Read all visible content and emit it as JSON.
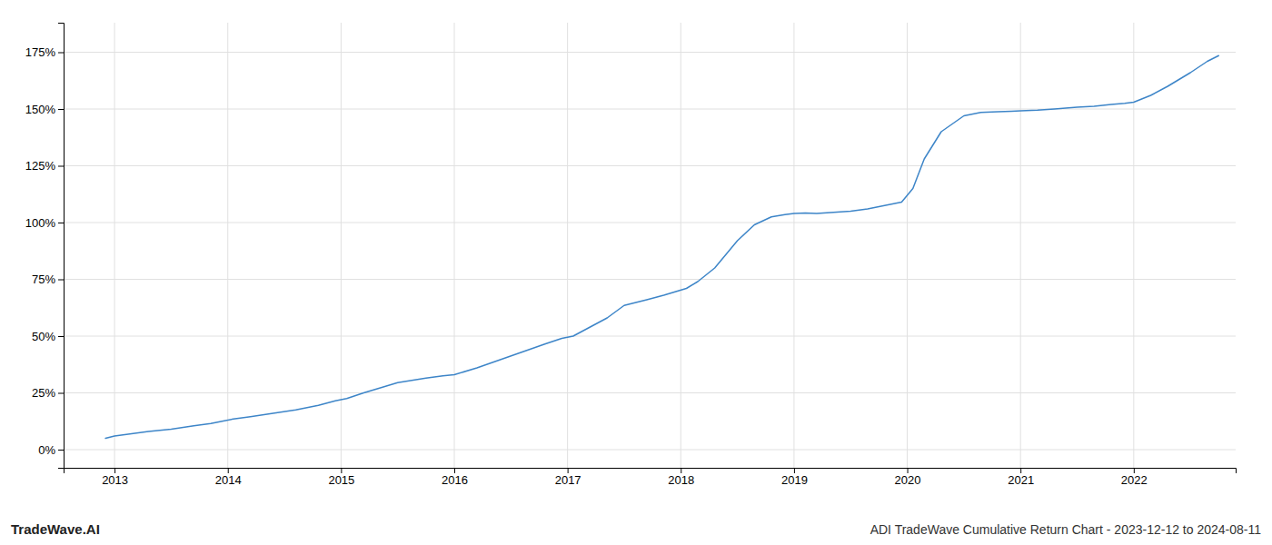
{
  "chart_data": {
    "type": "line",
    "title": "ADI TradeWave Cumulative Return Chart - 2023-12-12 to 2024-08-11",
    "annotations": [
      {
        "text": "TradeWave.AI"
      }
    ],
    "color": "#3d85c8",
    "grid": true,
    "xlim": [
      2012.55,
      2022.9
    ],
    "xticks": [
      2013,
      2014,
      2015,
      2016,
      2017,
      2018,
      2019,
      2020,
      2021,
      2022
    ],
    "ylim": [
      -8,
      188
    ],
    "yticks": [
      {
        "value": 0,
        "label": "0%"
      },
      {
        "value": 25,
        "label": "25%"
      },
      {
        "value": 50,
        "label": "50%"
      },
      {
        "value": 75,
        "label": "75%"
      },
      {
        "value": 100,
        "label": "100%"
      },
      {
        "value": 125,
        "label": "125%"
      },
      {
        "value": 150,
        "label": "150%"
      },
      {
        "value": 175,
        "label": "175%"
      }
    ],
    "x": [
      2012.92,
      2013.0,
      2013.15,
      2013.3,
      2013.5,
      2013.7,
      2013.85,
      2013.95,
      2014.05,
      2014.2,
      2014.4,
      2014.6,
      2014.8,
      2014.95,
      2015.05,
      2015.2,
      2015.5,
      2015.75,
      2015.9,
      2016.0,
      2016.2,
      2016.4,
      2016.6,
      2016.8,
      2016.95,
      2017.05,
      2017.2,
      2017.35,
      2017.5,
      2017.7,
      2017.85,
      2017.95,
      2018.05,
      2018.15,
      2018.3,
      2018.5,
      2018.65,
      2018.8,
      2018.92,
      2019.0,
      2019.1,
      2019.2,
      2019.35,
      2019.5,
      2019.65,
      2019.8,
      2019.95,
      2020.05,
      2020.15,
      2020.3,
      2020.5,
      2020.65,
      2020.8,
      2020.92,
      2021.0,
      2021.15,
      2021.3,
      2021.5,
      2021.65,
      2021.8,
      2021.92,
      2022.0,
      2022.15,
      2022.3,
      2022.5,
      2022.65,
      2022.75
    ],
    "values": [
      5.0,
      6.0,
      7.0,
      8.0,
      9.0,
      10.5,
      11.5,
      12.5,
      13.5,
      14.5,
      16.0,
      17.5,
      19.5,
      21.5,
      22.5,
      25.0,
      29.5,
      31.5,
      32.5,
      33.0,
      36.0,
      39.5,
      43.0,
      46.5,
      49.0,
      50.0,
      54.0,
      58.0,
      63.5,
      66.0,
      68.0,
      69.5,
      71.0,
      74.0,
      80.0,
      92.0,
      99.0,
      102.5,
      103.5,
      104.0,
      104.2,
      104.0,
      104.5,
      105.0,
      106.0,
      107.5,
      109.0,
      115.0,
      128.0,
      140.0,
      147.0,
      148.5,
      148.8,
      149.0,
      149.2,
      149.5,
      150.0,
      150.8,
      151.2,
      152.0,
      152.5,
      153.0,
      156.0,
      160.0,
      166.0,
      171.0,
      173.5
    ]
  }
}
